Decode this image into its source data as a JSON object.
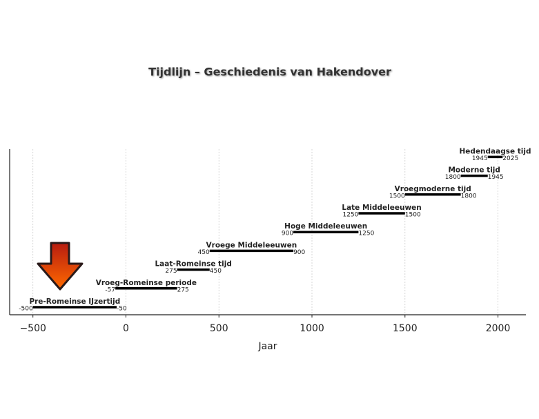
{
  "chart_data": {
    "type": "timeline",
    "title": "Tijdlijn – Geschiedenis van Hakendover",
    "x_label": "Jaar",
    "categories": [
      "Pre-Romeinse IJzertijd",
      "Vroeg-Romeinse periode",
      "Laat-Romeinse tijd",
      "Vroege Middeleeuwen",
      "Hoge Middeleeuwen",
      "Late Middeleeuwen",
      "Vroegmoderne tijd",
      "Moderne tijd",
      "Hedendaagse tijd"
    ],
    "start": [
      -500,
      -57,
      275,
      450,
      900,
      1250,
      1500,
      1800,
      1945
    ],
    "end": [
      -50,
      275,
      450,
      900,
      1250,
      1500,
      1800,
      1945,
      2025
    ],
    "color": "#000000",
    "xlim": [
      -625,
      2150
    ],
    "xticks": [
      {
        "value": -500,
        "label": "−500"
      },
      0,
      500,
      1000,
      1500,
      2000
    ],
    "grid": true
  }
}
